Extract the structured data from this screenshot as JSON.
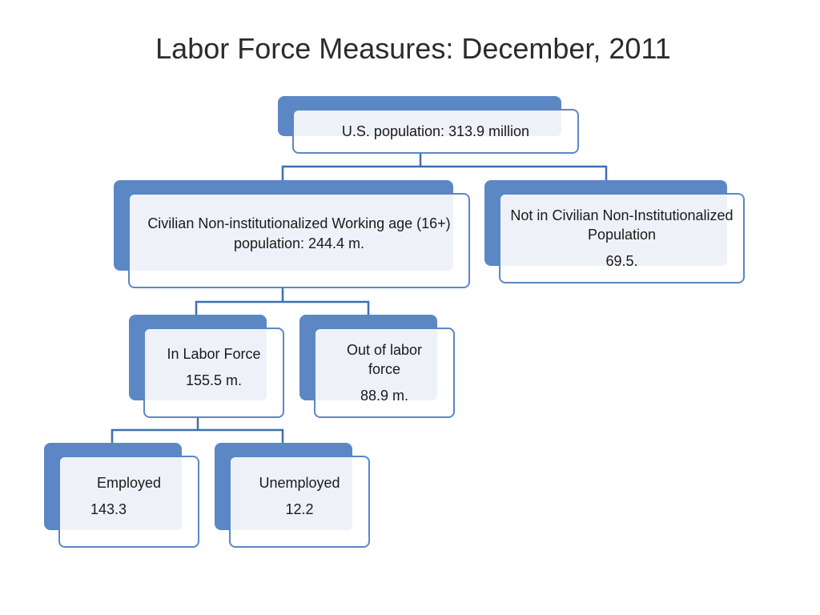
{
  "title": "Labor Force Measures: December, 2011",
  "accent_color": "#5b87c5",
  "nodes": {
    "us_population": {
      "label": "U.S. population: 313.9 million"
    },
    "civilian_working_age": {
      "label": "Civilian Non-institutionalized Working age (16+) population: 244.4 m."
    },
    "not_in_civilian": {
      "label": "Not in Civilian Non-Institutionalized Population",
      "value": "69.5."
    },
    "in_labor_force": {
      "label": "In Labor Force",
      "value": "155.5 m."
    },
    "out_of_labor_force": {
      "label": "Out of labor force",
      "value": "88.9 m."
    },
    "employed": {
      "label": "Employed",
      "value": "143.3"
    },
    "unemployed": {
      "label": "Unemployed",
      "value": "12.2"
    }
  }
}
